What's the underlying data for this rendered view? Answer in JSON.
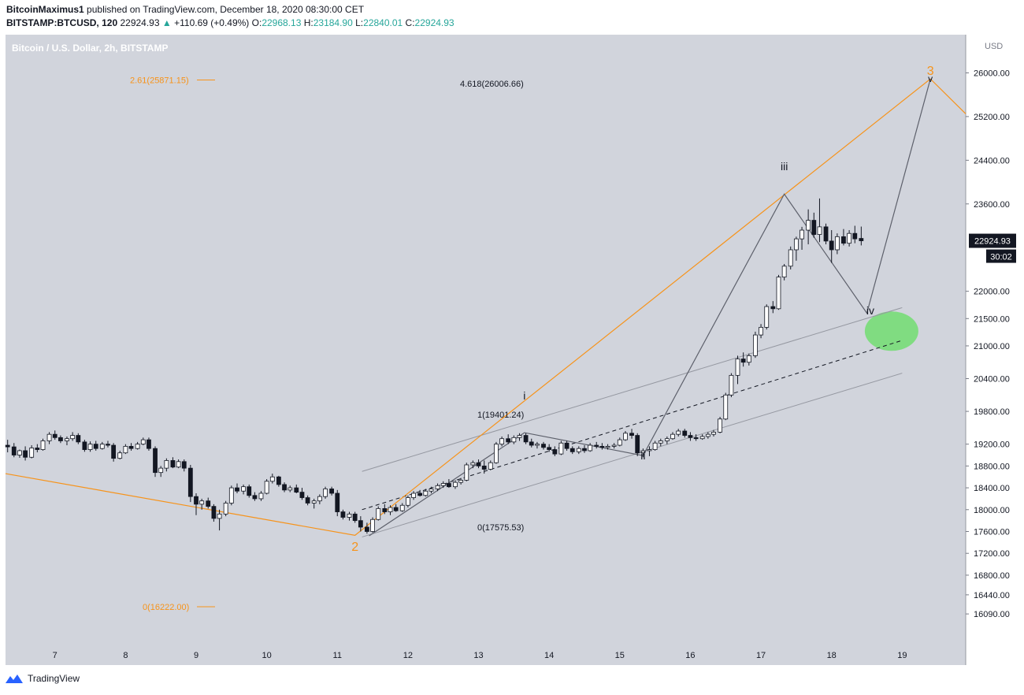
{
  "header": {
    "author": "BitcoinMaximus1",
    "publish_text": "published on TradingView.com, December 18, 2020 08:30:00 CET",
    "symbol": "BITSTAMP:BTCUSD, 120",
    "last": "22924.93",
    "change": "+110.69 (+0.49%)",
    "o_label": "O:",
    "o": "22968.13",
    "h_label": "H:",
    "h": "23184.90",
    "l_label": "L:",
    "l": "22840.01",
    "c_label": "C:",
    "c": "22924.93"
  },
  "footer": {
    "brand": "TradingView"
  },
  "colors": {
    "background": "#d1d4dc",
    "orange": "#f7931a",
    "wave": "#5d606b",
    "channel": "#9598a1",
    "label_price_bg": "#131722",
    "iv_ellipse": "#77dd77"
  },
  "chart_data": {
    "type": "candlestick",
    "title": "Bitcoin / U.S. Dollar, 2h, BITSTAMP",
    "currency": "USD",
    "x_ticks": [
      "7",
      "8",
      "9",
      "10",
      "11",
      "12",
      "13",
      "14",
      "15",
      "16",
      "17",
      "18",
      "19"
    ],
    "y_ticks": [
      "26000.00",
      "25200.00",
      "24400.00",
      "23600.00",
      "22000.00",
      "21500.00",
      "21000.00",
      "20400.00",
      "19800.00",
      "19200.00",
      "18800.00",
      "18400.00",
      "18000.00",
      "17600.00",
      "17200.00",
      "16800.00",
      "16440.00",
      "16090.00"
    ],
    "y_tick_values": [
      26000,
      25200,
      24400,
      23600,
      22000,
      21500,
      21000,
      20400,
      19800,
      19200,
      18800,
      18400,
      18000,
      17600,
      17200,
      16800,
      16440,
      16090
    ],
    "x_range": [
      6.3,
      19.9
    ],
    "y_range": [
      15500,
      26700
    ],
    "current_price": "22924.93",
    "countdown": "30:02",
    "candles": [
      {
        "t": 6.33,
        "o": 19180,
        "h": 19280,
        "l": 19050,
        "c": 19150
      },
      {
        "t": 6.42,
        "o": 19150,
        "h": 19220,
        "l": 18960,
        "c": 19000
      },
      {
        "t": 6.5,
        "o": 19000,
        "h": 19100,
        "l": 18950,
        "c": 19080
      },
      {
        "t": 6.58,
        "o": 19080,
        "h": 19160,
        "l": 18900,
        "c": 18960
      },
      {
        "t": 6.67,
        "o": 18960,
        "h": 19180,
        "l": 18940,
        "c": 19130
      },
      {
        "t": 6.75,
        "o": 19130,
        "h": 19200,
        "l": 19050,
        "c": 19100
      },
      {
        "t": 6.83,
        "o": 19100,
        "h": 19300,
        "l": 19080,
        "c": 19260
      },
      {
        "t": 6.92,
        "o": 19260,
        "h": 19420,
        "l": 19200,
        "c": 19380
      },
      {
        "t": 7.0,
        "o": 19380,
        "h": 19450,
        "l": 19280,
        "c": 19320
      },
      {
        "t": 7.08,
        "o": 19320,
        "h": 19360,
        "l": 19220,
        "c": 19260
      },
      {
        "t": 7.17,
        "o": 19260,
        "h": 19340,
        "l": 19180,
        "c": 19300
      },
      {
        "t": 7.25,
        "o": 19300,
        "h": 19420,
        "l": 19260,
        "c": 19360
      },
      {
        "t": 7.33,
        "o": 19360,
        "h": 19400,
        "l": 19200,
        "c": 19240
      },
      {
        "t": 7.42,
        "o": 19240,
        "h": 19280,
        "l": 19060,
        "c": 19100
      },
      {
        "t": 7.5,
        "o": 19100,
        "h": 19250,
        "l": 19060,
        "c": 19200
      },
      {
        "t": 7.58,
        "o": 19200,
        "h": 19260,
        "l": 19080,
        "c": 19120
      },
      {
        "t": 7.67,
        "o": 19120,
        "h": 19240,
        "l": 19100,
        "c": 19200
      },
      {
        "t": 7.75,
        "o": 19200,
        "h": 19260,
        "l": 19140,
        "c": 19180
      },
      {
        "t": 7.83,
        "o": 19180,
        "h": 19220,
        "l": 18880,
        "c": 18940
      },
      {
        "t": 7.92,
        "o": 18940,
        "h": 19080,
        "l": 18920,
        "c": 19040
      },
      {
        "t": 8.0,
        "o": 19040,
        "h": 19200,
        "l": 19020,
        "c": 19160
      },
      {
        "t": 8.08,
        "o": 19160,
        "h": 19220,
        "l": 19080,
        "c": 19120
      },
      {
        "t": 8.17,
        "o": 19120,
        "h": 19240,
        "l": 19100,
        "c": 19200
      },
      {
        "t": 8.25,
        "o": 19200,
        "h": 19320,
        "l": 19180,
        "c": 19280
      },
      {
        "t": 8.33,
        "o": 19280,
        "h": 19320,
        "l": 19080,
        "c": 19120
      },
      {
        "t": 8.42,
        "o": 19120,
        "h": 19160,
        "l": 18600,
        "c": 18680
      },
      {
        "t": 8.5,
        "o": 18680,
        "h": 18800,
        "l": 18600,
        "c": 18760
      },
      {
        "t": 8.58,
        "o": 18760,
        "h": 18940,
        "l": 18700,
        "c": 18900
      },
      {
        "t": 8.67,
        "o": 18900,
        "h": 18960,
        "l": 18760,
        "c": 18780
      },
      {
        "t": 8.75,
        "o": 18780,
        "h": 18920,
        "l": 18760,
        "c": 18880
      },
      {
        "t": 8.83,
        "o": 18880,
        "h": 18920,
        "l": 18700,
        "c": 18760
      },
      {
        "t": 8.92,
        "o": 18760,
        "h": 18820,
        "l": 18140,
        "c": 18240
      },
      {
        "t": 9.0,
        "o": 18240,
        "h": 18300,
        "l": 17900,
        "c": 18100
      },
      {
        "t": 9.08,
        "o": 18100,
        "h": 18200,
        "l": 18000,
        "c": 18160
      },
      {
        "t": 9.17,
        "o": 18160,
        "h": 18220,
        "l": 18020,
        "c": 18060
      },
      {
        "t": 9.25,
        "o": 18060,
        "h": 18100,
        "l": 17780,
        "c": 17840
      },
      {
        "t": 9.33,
        "o": 17840,
        "h": 18000,
        "l": 17620,
        "c": 17920
      },
      {
        "t": 9.42,
        "o": 17920,
        "h": 18160,
        "l": 17880,
        "c": 18120
      },
      {
        "t": 9.5,
        "o": 18120,
        "h": 18440,
        "l": 18080,
        "c": 18400
      },
      {
        "t": 9.58,
        "o": 18400,
        "h": 18480,
        "l": 18300,
        "c": 18340
      },
      {
        "t": 9.67,
        "o": 18340,
        "h": 18460,
        "l": 18280,
        "c": 18420
      },
      {
        "t": 9.75,
        "o": 18420,
        "h": 18460,
        "l": 18220,
        "c": 18260
      },
      {
        "t": 9.83,
        "o": 18260,
        "h": 18320,
        "l": 18160,
        "c": 18200
      },
      {
        "t": 9.92,
        "o": 18200,
        "h": 18340,
        "l": 18160,
        "c": 18300
      },
      {
        "t": 10.0,
        "o": 18300,
        "h": 18560,
        "l": 18280,
        "c": 18520
      },
      {
        "t": 10.08,
        "o": 18520,
        "h": 18660,
        "l": 18480,
        "c": 18600
      },
      {
        "t": 10.17,
        "o": 18600,
        "h": 18620,
        "l": 18420,
        "c": 18460
      },
      {
        "t": 10.25,
        "o": 18460,
        "h": 18500,
        "l": 18320,
        "c": 18360
      },
      {
        "t": 10.33,
        "o": 18360,
        "h": 18440,
        "l": 18320,
        "c": 18400
      },
      {
        "t": 10.42,
        "o": 18400,
        "h": 18460,
        "l": 18300,
        "c": 18320
      },
      {
        "t": 10.5,
        "o": 18320,
        "h": 18400,
        "l": 18180,
        "c": 18220
      },
      {
        "t": 10.58,
        "o": 18220,
        "h": 18260,
        "l": 18080,
        "c": 18120
      },
      {
        "t": 10.67,
        "o": 18120,
        "h": 18200,
        "l": 18020,
        "c": 18160
      },
      {
        "t": 10.75,
        "o": 18160,
        "h": 18280,
        "l": 18100,
        "c": 18240
      },
      {
        "t": 10.83,
        "o": 18240,
        "h": 18420,
        "l": 18200,
        "c": 18380
      },
      {
        "t": 10.92,
        "o": 18380,
        "h": 18420,
        "l": 18260,
        "c": 18300
      },
      {
        "t": 11.0,
        "o": 18300,
        "h": 18360,
        "l": 17880,
        "c": 17960
      },
      {
        "t": 11.08,
        "o": 17960,
        "h": 18000,
        "l": 17820,
        "c": 17860
      },
      {
        "t": 11.17,
        "o": 17860,
        "h": 17960,
        "l": 17800,
        "c": 17920
      },
      {
        "t": 11.25,
        "o": 17920,
        "h": 17960,
        "l": 17760,
        "c": 17800
      },
      {
        "t": 11.33,
        "o": 17800,
        "h": 17880,
        "l": 17600,
        "c": 17680
      },
      {
        "t": 11.42,
        "o": 17680,
        "h": 17760,
        "l": 17560,
        "c": 17600
      },
      {
        "t": 11.5,
        "o": 17600,
        "h": 17860,
        "l": 17580,
        "c": 17820
      },
      {
        "t": 11.58,
        "o": 17820,
        "h": 18060,
        "l": 17800,
        "c": 18020
      },
      {
        "t": 11.67,
        "o": 18020,
        "h": 18100,
        "l": 17920,
        "c": 17960
      },
      {
        "t": 11.75,
        "o": 17960,
        "h": 18080,
        "l": 17900,
        "c": 18040
      },
      {
        "t": 11.83,
        "o": 18040,
        "h": 18100,
        "l": 17960,
        "c": 17980
      },
      {
        "t": 11.92,
        "o": 17980,
        "h": 18120,
        "l": 17960,
        "c": 18080
      },
      {
        "t": 12.0,
        "o": 18080,
        "h": 18260,
        "l": 18040,
        "c": 18220
      },
      {
        "t": 12.08,
        "o": 18220,
        "h": 18340,
        "l": 18180,
        "c": 18300
      },
      {
        "t": 12.17,
        "o": 18300,
        "h": 18360,
        "l": 18240,
        "c": 18260
      },
      {
        "t": 12.25,
        "o": 18260,
        "h": 18380,
        "l": 18240,
        "c": 18340
      },
      {
        "t": 12.33,
        "o": 18340,
        "h": 18420,
        "l": 18300,
        "c": 18380
      },
      {
        "t": 12.42,
        "o": 18380,
        "h": 18480,
        "l": 18340,
        "c": 18440
      },
      {
        "t": 12.5,
        "o": 18440,
        "h": 18520,
        "l": 18400,
        "c": 18480
      },
      {
        "t": 12.58,
        "o": 18480,
        "h": 18560,
        "l": 18400,
        "c": 18420
      },
      {
        "t": 12.67,
        "o": 18420,
        "h": 18540,
        "l": 18380,
        "c": 18500
      },
      {
        "t": 12.75,
        "o": 18500,
        "h": 18580,
        "l": 18460,
        "c": 18540
      },
      {
        "t": 12.83,
        "o": 18540,
        "h": 18860,
        "l": 18520,
        "c": 18820
      },
      {
        "t": 12.92,
        "o": 18820,
        "h": 18900,
        "l": 18760,
        "c": 18860
      },
      {
        "t": 13.0,
        "o": 18860,
        "h": 18920,
        "l": 18760,
        "c": 18800
      },
      {
        "t": 13.08,
        "o": 18800,
        "h": 18900,
        "l": 18660,
        "c": 18740
      },
      {
        "t": 13.17,
        "o": 18740,
        "h": 18900,
        "l": 18720,
        "c": 18860
      },
      {
        "t": 13.25,
        "o": 18860,
        "h": 19240,
        "l": 18840,
        "c": 19200
      },
      {
        "t": 13.33,
        "o": 19200,
        "h": 19340,
        "l": 19160,
        "c": 19300
      },
      {
        "t": 13.42,
        "o": 19300,
        "h": 19380,
        "l": 19200,
        "c": 19240
      },
      {
        "t": 13.5,
        "o": 19240,
        "h": 19360,
        "l": 19200,
        "c": 19320
      },
      {
        "t": 13.58,
        "o": 19320,
        "h": 19400,
        "l": 19260,
        "c": 19360
      },
      {
        "t": 13.67,
        "o": 19360,
        "h": 19400,
        "l": 19200,
        "c": 19240
      },
      {
        "t": 13.75,
        "o": 19240,
        "h": 19300,
        "l": 19140,
        "c": 19180
      },
      {
        "t": 13.83,
        "o": 19180,
        "h": 19240,
        "l": 19120,
        "c": 19200
      },
      {
        "t": 13.92,
        "o": 19200,
        "h": 19240,
        "l": 19100,
        "c": 19140
      },
      {
        "t": 14.0,
        "o": 19140,
        "h": 19200,
        "l": 19060,
        "c": 19100
      },
      {
        "t": 14.08,
        "o": 19100,
        "h": 19160,
        "l": 18980,
        "c": 19020
      },
      {
        "t": 14.17,
        "o": 19020,
        "h": 19260,
        "l": 19000,
        "c": 19220
      },
      {
        "t": 14.25,
        "o": 19220,
        "h": 19260,
        "l": 19080,
        "c": 19120
      },
      {
        "t": 14.33,
        "o": 19120,
        "h": 19160,
        "l": 19020,
        "c": 19060
      },
      {
        "t": 14.42,
        "o": 19060,
        "h": 19160,
        "l": 19020,
        "c": 19120
      },
      {
        "t": 14.5,
        "o": 19120,
        "h": 19180,
        "l": 19040,
        "c": 19080
      },
      {
        "t": 14.58,
        "o": 19080,
        "h": 19220,
        "l": 19060,
        "c": 19180
      },
      {
        "t": 14.67,
        "o": 19180,
        "h": 19240,
        "l": 19120,
        "c": 19160
      },
      {
        "t": 14.75,
        "o": 19160,
        "h": 19220,
        "l": 19100,
        "c": 19140
      },
      {
        "t": 14.83,
        "o": 19140,
        "h": 19200,
        "l": 19100,
        "c": 19160
      },
      {
        "t": 14.92,
        "o": 19160,
        "h": 19220,
        "l": 19120,
        "c": 19180
      },
      {
        "t": 15.0,
        "o": 19180,
        "h": 19320,
        "l": 19160,
        "c": 19280
      },
      {
        "t": 15.08,
        "o": 19280,
        "h": 19440,
        "l": 19260,
        "c": 19400
      },
      {
        "t": 15.17,
        "o": 19400,
        "h": 19480,
        "l": 19300,
        "c": 19360
      },
      {
        "t": 15.25,
        "o": 19360,
        "h": 19400,
        "l": 18980,
        "c": 19040
      },
      {
        "t": 15.33,
        "o": 19040,
        "h": 19120,
        "l": 18960,
        "c": 19080
      },
      {
        "t": 15.42,
        "o": 19080,
        "h": 19160,
        "l": 18980,
        "c": 19100
      },
      {
        "t": 15.5,
        "o": 19100,
        "h": 19260,
        "l": 19080,
        "c": 19220
      },
      {
        "t": 15.58,
        "o": 19220,
        "h": 19300,
        "l": 19160,
        "c": 19260
      },
      {
        "t": 15.67,
        "o": 19260,
        "h": 19340,
        "l": 19200,
        "c": 19300
      },
      {
        "t": 15.75,
        "o": 19300,
        "h": 19420,
        "l": 19280,
        "c": 19380
      },
      {
        "t": 15.83,
        "o": 19380,
        "h": 19480,
        "l": 19340,
        "c": 19440
      },
      {
        "t": 15.92,
        "o": 19440,
        "h": 19480,
        "l": 19320,
        "c": 19360
      },
      {
        "t": 16.0,
        "o": 19360,
        "h": 19420,
        "l": 19260,
        "c": 19320
      },
      {
        "t": 16.08,
        "o": 19320,
        "h": 19380,
        "l": 19260,
        "c": 19300
      },
      {
        "t": 16.17,
        "o": 19300,
        "h": 19380,
        "l": 19280,
        "c": 19340
      },
      {
        "t": 16.25,
        "o": 19340,
        "h": 19420,
        "l": 19300,
        "c": 19380
      },
      {
        "t": 16.33,
        "o": 19380,
        "h": 19460,
        "l": 19340,
        "c": 19420
      },
      {
        "t": 16.42,
        "o": 19420,
        "h": 19700,
        "l": 19400,
        "c": 19660
      },
      {
        "t": 16.5,
        "o": 19660,
        "h": 20140,
        "l": 19640,
        "c": 20100
      },
      {
        "t": 16.58,
        "o": 20100,
        "h": 20500,
        "l": 20060,
        "c": 20460
      },
      {
        "t": 16.67,
        "o": 20460,
        "h": 20820,
        "l": 20300,
        "c": 20760
      },
      {
        "t": 16.75,
        "o": 20760,
        "h": 20880,
        "l": 20620,
        "c": 20700
      },
      {
        "t": 16.83,
        "o": 20700,
        "h": 20860,
        "l": 20640,
        "c": 20820
      },
      {
        "t": 16.92,
        "o": 20820,
        "h": 21260,
        "l": 20780,
        "c": 21200
      },
      {
        "t": 17.0,
        "o": 21200,
        "h": 21400,
        "l": 21140,
        "c": 21340
      },
      {
        "t": 17.08,
        "o": 21340,
        "h": 21760,
        "l": 21300,
        "c": 21720
      },
      {
        "t": 17.17,
        "o": 21720,
        "h": 21820,
        "l": 21600,
        "c": 21680
      },
      {
        "t": 17.25,
        "o": 21680,
        "h": 22300,
        "l": 21660,
        "c": 22260
      },
      {
        "t": 17.33,
        "o": 22260,
        "h": 22500,
        "l": 22200,
        "c": 22460
      },
      {
        "t": 17.42,
        "o": 22460,
        "h": 22820,
        "l": 22400,
        "c": 22760
      },
      {
        "t": 17.5,
        "o": 22760,
        "h": 23000,
        "l": 22560,
        "c": 22960
      },
      {
        "t": 17.58,
        "o": 22960,
        "h": 23180,
        "l": 22760,
        "c": 23120
      },
      {
        "t": 17.67,
        "o": 23120,
        "h": 23500,
        "l": 22860,
        "c": 23300
      },
      {
        "t": 17.75,
        "o": 23300,
        "h": 23440,
        "l": 22980,
        "c": 23040
      },
      {
        "t": 17.83,
        "o": 23040,
        "h": 23700,
        "l": 22900,
        "c": 23180
      },
      {
        "t": 17.92,
        "o": 23180,
        "h": 23240,
        "l": 22860,
        "c": 22920
      },
      {
        "t": 18.0,
        "o": 22920,
        "h": 23120,
        "l": 22520,
        "c": 22760
      },
      {
        "t": 18.08,
        "o": 22760,
        "h": 23060,
        "l": 22680,
        "c": 23000
      },
      {
        "t": 18.17,
        "o": 23000,
        "h": 23140,
        "l": 22840,
        "c": 22880
      },
      {
        "t": 18.25,
        "o": 22880,
        "h": 23120,
        "l": 22820,
        "c": 23060
      },
      {
        "t": 18.33,
        "o": 23060,
        "h": 23200,
        "l": 22880,
        "c": 22960
      },
      {
        "t": 18.42,
        "o": 22968,
        "h": 23185,
        "l": 22840,
        "c": 22925
      }
    ],
    "annotations": {
      "fib_top_left": "2.61(25871.15)",
      "fib_bottom_left": "0(16222.00)",
      "fib_top_mid": "4.618(26006.66)",
      "fib_1": "1(19401.24)",
      "fib_0": "0(17575.53)",
      "wave_2": "2",
      "wave_3": "3",
      "wave_i": "i",
      "wave_ii": "ii",
      "wave_iii": "iii",
      "wave_iv": "iv",
      "wave_v": "v"
    }
  }
}
